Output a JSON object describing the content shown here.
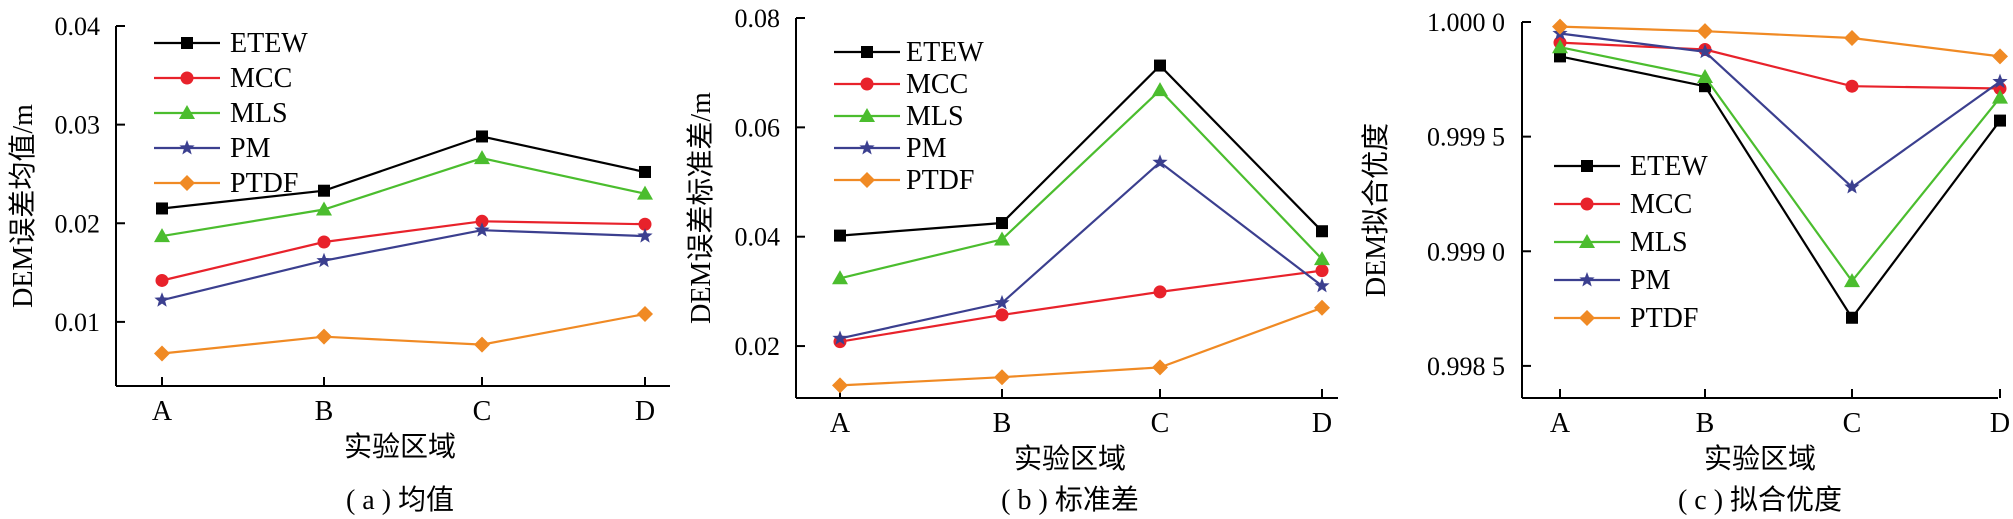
{
  "panels": [
    {
      "caption": "( a ) 均值",
      "chart_data": {
        "type": "line",
        "categories": [
          "A",
          "B",
          "C",
          "D"
        ],
        "xlabel": "实验区域",
        "ylabel": "DEM误差均值/m",
        "ylim": [
          0.0035,
          0.04
        ],
        "yticks": [
          0.01,
          0.02,
          0.03,
          0.04
        ],
        "ytick_labels": [
          "0.01",
          "0.02",
          "0.03",
          "0.04"
        ],
        "legend_position": "top-left",
        "series": [
          {
            "name": "ETEW",
            "values": [
              0.0215,
              0.0233,
              0.0288,
              0.0252
            ]
          },
          {
            "name": "MCC",
            "values": [
              0.0142,
              0.0181,
              0.0202,
              0.0199
            ]
          },
          {
            "name": "MLS",
            "values": [
              0.0187,
              0.0214,
              0.0266,
              0.023
            ]
          },
          {
            "name": "PM",
            "values": [
              0.0122,
              0.0162,
              0.0193,
              0.0187
            ]
          },
          {
            "name": "PTDF",
            "values": [
              0.0068,
              0.0085,
              0.0077,
              0.0108
            ]
          }
        ]
      }
    },
    {
      "caption": "( b ) 标准差",
      "chart_data": {
        "type": "line",
        "categories": [
          "A",
          "B",
          "C",
          "D"
        ],
        "xlabel": "实验区域",
        "ylabel": "DEM误差标准差/m",
        "ylim": [
          0.0105,
          0.08
        ],
        "yticks": [
          0.02,
          0.04,
          0.06,
          0.08
        ],
        "ytick_labels": [
          "0.02",
          "0.04",
          "0.06",
          "0.08"
        ],
        "legend_position": "top-left",
        "series": [
          {
            "name": "ETEW",
            "values": [
              0.0402,
              0.0425,
              0.0713,
              0.041
            ]
          },
          {
            "name": "MCC",
            "values": [
              0.0208,
              0.0257,
              0.0299,
              0.0338
            ]
          },
          {
            "name": "MLS",
            "values": [
              0.0324,
              0.0395,
              0.0668,
              0.0359
            ]
          },
          {
            "name": "PM",
            "values": [
              0.0214,
              0.0279,
              0.0536,
              0.031
            ]
          },
          {
            "name": "PTDF",
            "values": [
              0.0128,
              0.0143,
              0.0161,
              0.027
            ]
          }
        ]
      }
    },
    {
      "caption": "( c ) 拟合优度",
      "chart_data": {
        "type": "line",
        "categories": [
          "A",
          "B",
          "C",
          "D"
        ],
        "xlabel": "实验区域",
        "ylabel": "DEM拟合优度",
        "ylim": [
          0.99836,
          1.0
        ],
        "yticks": [
          0.9985,
          0.999,
          0.9995,
          1.0
        ],
        "ytick_labels": [
          "0.998 5",
          "0.999 0",
          "0.999 5",
          "1.000 0"
        ],
        "legend_position": "center-left",
        "series": [
          {
            "name": "ETEW",
            "values": [
              0.99985,
              0.99972,
              0.99871,
              0.99957
            ]
          },
          {
            "name": "MCC",
            "values": [
              0.99991,
              0.99988,
              0.99972,
              0.99971
            ]
          },
          {
            "name": "MLS",
            "values": [
              0.99989,
              0.99976,
              0.99887,
              0.99967
            ]
          },
          {
            "name": "PM",
            "values": [
              0.99995,
              0.99987,
              0.99928,
              0.99974
            ]
          },
          {
            "name": "PTDF",
            "values": [
              0.99998,
              0.99996,
              0.99993,
              0.99985
            ]
          }
        ]
      }
    }
  ],
  "series_styles": [
    {
      "color": "#000000",
      "marker": "square"
    },
    {
      "color": "#e8222b",
      "marker": "circle"
    },
    {
      "color": "#4bbd2e",
      "marker": "triangle"
    },
    {
      "color": "#3b3f8f",
      "marker": "star"
    },
    {
      "color": "#f08a24",
      "marker": "diamond"
    }
  ]
}
